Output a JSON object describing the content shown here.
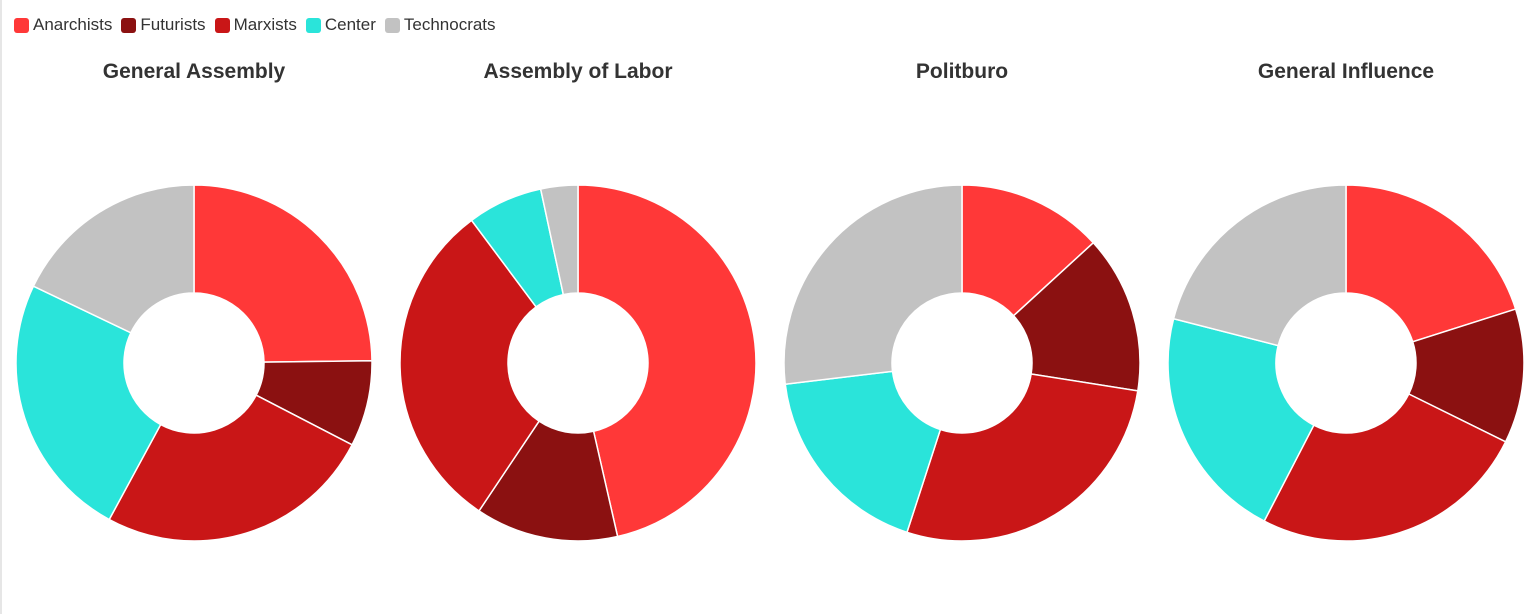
{
  "legend": [
    {
      "label": "Anarchists",
      "color": "#ff3838"
    },
    {
      "label": "Futurists",
      "color": "#8b1111"
    },
    {
      "label": "Marxists",
      "color": "#c91617"
    },
    {
      "label": "Center",
      "color": "#2ae4da"
    },
    {
      "label": "Technocrats",
      "color": "#c2c2c2"
    }
  ],
  "chart_data": [
    {
      "type": "pie",
      "title": "General Assembly",
      "categories": [
        "Anarchists",
        "Futurists",
        "Marxists",
        "Center",
        "Technocrats"
      ],
      "values": [
        24.8,
        7.8,
        25.3,
        24.2,
        17.9
      ]
    },
    {
      "type": "pie",
      "title": "Assembly of Labor",
      "categories": [
        "Anarchists",
        "Futurists",
        "Marxists",
        "Center",
        "Technocrats"
      ],
      "values": [
        45.5,
        12.7,
        29.8,
        6.7,
        3.3
      ]
    },
    {
      "type": "pie",
      "title": "Politburo",
      "categories": [
        "Anarchists",
        "Futurists",
        "Marxists",
        "Center",
        "Technocrats"
      ],
      "values": [
        13.2,
        14.3,
        27.5,
        18.1,
        26.9
      ]
    },
    {
      "type": "pie",
      "title": "General Influence",
      "categories": [
        "Anarchists",
        "Futurists",
        "Marxists",
        "Center",
        "Technocrats"
      ],
      "values": [
        20.1,
        12.2,
        25.3,
        21.4,
        21.0
      ]
    }
  ]
}
